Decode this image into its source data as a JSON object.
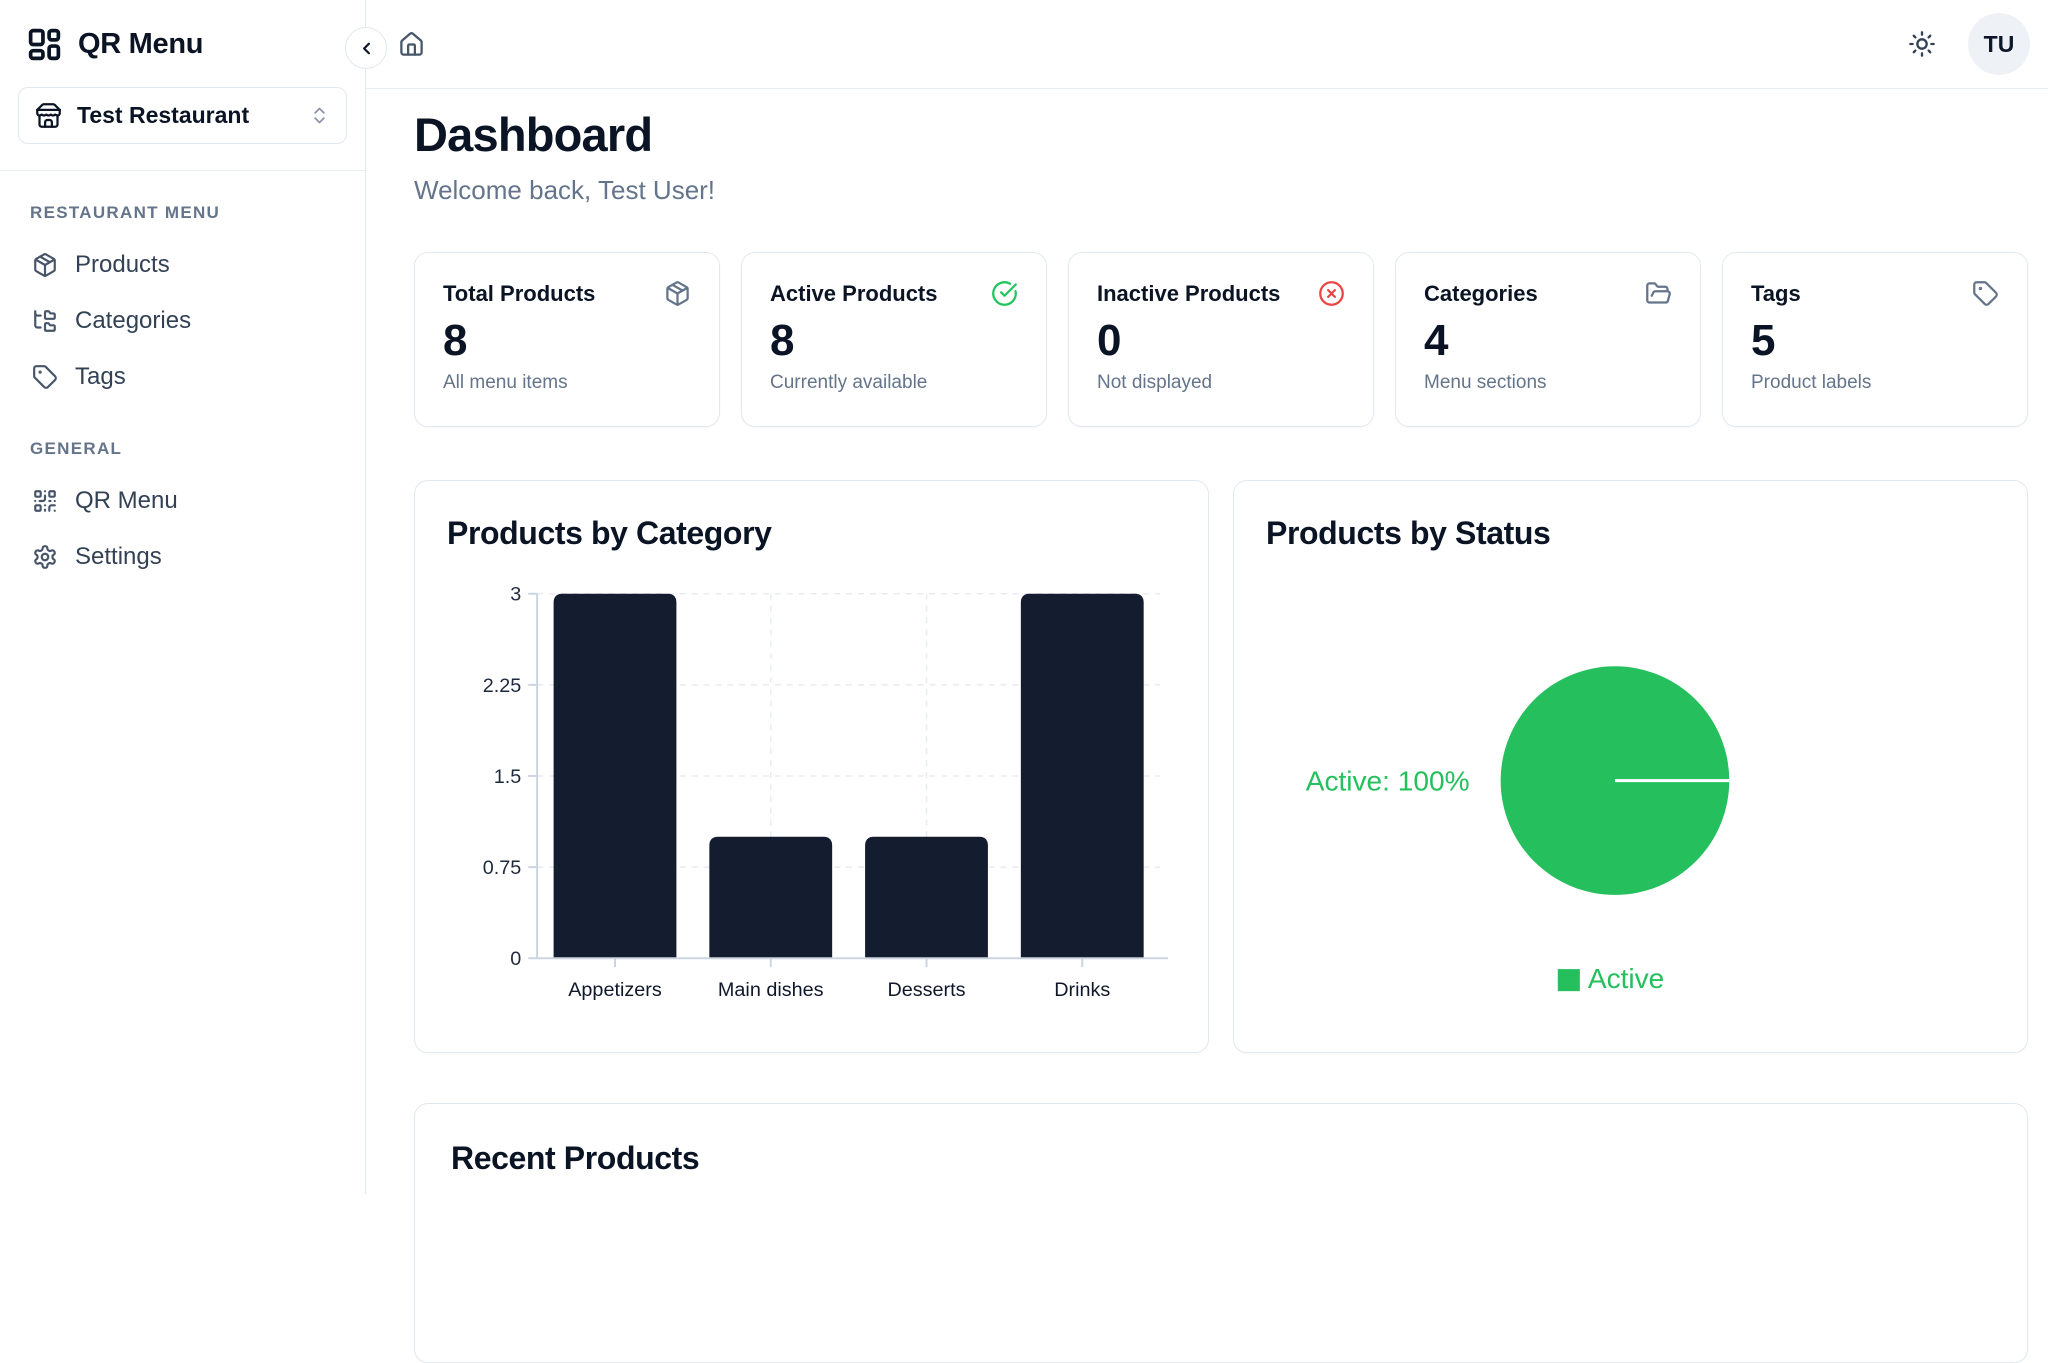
{
  "brand": {
    "app_name": "QR Menu",
    "restaurant_name": "Test Restaurant"
  },
  "sidebar": {
    "sections": [
      {
        "label": "RESTAURANT MENU",
        "items": [
          {
            "label": "Products",
            "icon": "package-icon"
          },
          {
            "label": "Categories",
            "icon": "folder-tree-icon"
          },
          {
            "label": "Tags",
            "icon": "tag-icon"
          }
        ]
      },
      {
        "label": "GENERAL",
        "items": [
          {
            "label": "QR Menu",
            "icon": "qr-code-icon"
          },
          {
            "label": "Settings",
            "icon": "gear-icon"
          }
        ]
      }
    ]
  },
  "header": {
    "avatar_initials": "TU",
    "icons": [
      "chevron-left-icon",
      "home-icon",
      "sun-icon"
    ]
  },
  "page": {
    "title": "Dashboard",
    "welcome": "Welcome back, Test User!"
  },
  "stats": [
    {
      "title": "Total Products",
      "value": "8",
      "subtitle": "All menu items",
      "icon": "package-icon",
      "icon_color": "#64748b"
    },
    {
      "title": "Active Products",
      "value": "8",
      "subtitle": "Currently available",
      "icon": "check-circle-icon",
      "icon_color": "#22c55e"
    },
    {
      "title": "Inactive Products",
      "value": "0",
      "subtitle": "Not displayed",
      "icon": "x-circle-icon",
      "icon_color": "#ef4444"
    },
    {
      "title": "Categories",
      "value": "4",
      "subtitle": "Menu sections",
      "icon": "folder-open-icon",
      "icon_color": "#64748b"
    },
    {
      "title": "Tags",
      "value": "5",
      "subtitle": "Product labels",
      "icon": "tag-icon",
      "icon_color": "#64748b"
    }
  ],
  "chart_data": [
    {
      "type": "bar",
      "title": "Products by Category",
      "categories": [
        "Appetizers",
        "Main dishes",
        "Desserts",
        "Drinks"
      ],
      "values": [
        3,
        1,
        1,
        3
      ],
      "xlabel": "",
      "ylabel": "",
      "ylim": [
        0,
        3
      ],
      "yticks": [
        0,
        0.75,
        1.5,
        2.25,
        3
      ],
      "grid": "dashed horizontal at yticks, dashed vertical at category centers",
      "legend_position": "none",
      "bar_color": "#141c30",
      "axis_color": "#cbd5e1",
      "grid_color": "#e7ebf2",
      "tick_label_color": "#1e293b"
    },
    {
      "type": "pie",
      "title": "Products by Status",
      "slices": [
        {
          "label": "Active",
          "value": 100,
          "color": "#25c05d",
          "callout": "Active: 100%"
        }
      ],
      "legend_position": "bottom",
      "legend": [
        "Active"
      ]
    }
  ],
  "recent_products": {
    "title": "Recent Products"
  },
  "colors": {
    "accent_green": "#25c05d",
    "danger_red": "#ef4444",
    "bar_navy": "#141c30",
    "border": "#e2e8f0",
    "text_dark": "#0b1424",
    "text_muted": "#64748b"
  }
}
